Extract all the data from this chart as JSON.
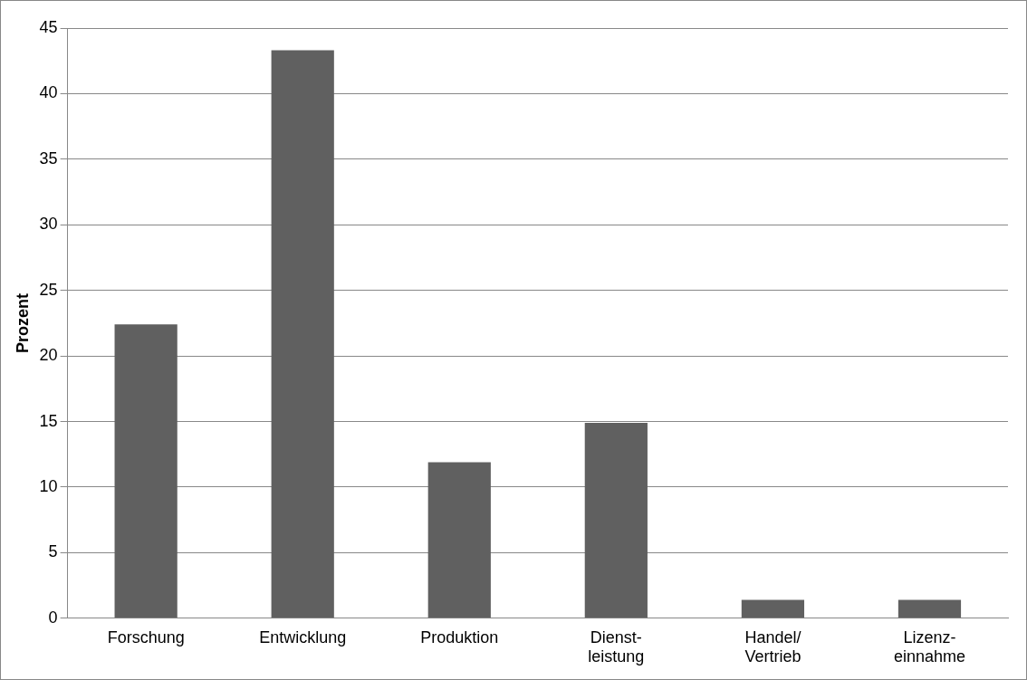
{
  "chart_data": {
    "type": "bar",
    "ylabel": "Prozent",
    "categories": [
      "Forschung",
      "Entwicklung",
      "Produktion",
      "Dienst-\nleistung",
      "Handel/\nVertrieb",
      "Lizenz-\neinnahme"
    ],
    "values": [
      22.4,
      43.3,
      11.9,
      14.9,
      1.4,
      1.4
    ],
    "color": "#606060",
    "ylim": [
      0,
      45
    ],
    "yticks": [
      0,
      5,
      10,
      15,
      20,
      25,
      30,
      35,
      40,
      45
    ],
    "grid": "y",
    "legend": false
  }
}
